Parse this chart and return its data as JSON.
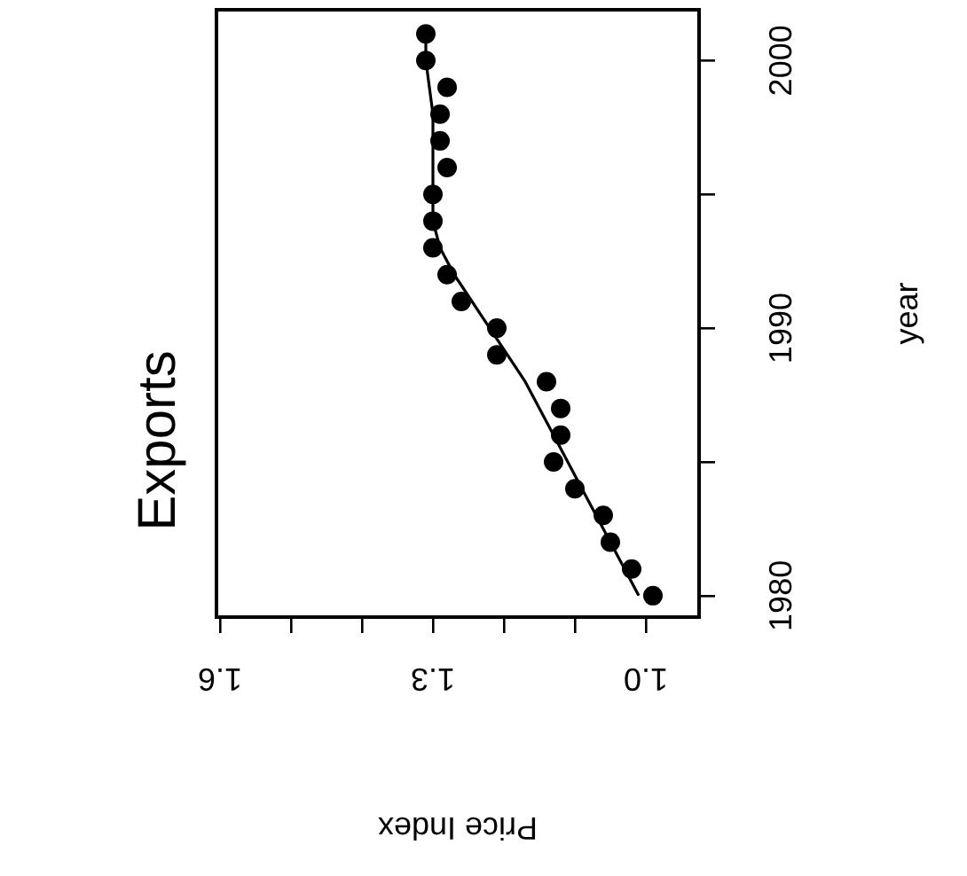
{
  "chart_data": {
    "type": "scatter",
    "title": "Exports",
    "xlabel": "Price Index",
    "ylabel": "year",
    "xlim": [
      1.605,
      0.925
    ],
    "ylim": [
      1979.2,
      2001.9
    ],
    "yticks": [
      1980,
      {
        "value": 1985,
        "label": null
      },
      1990,
      {
        "value": 1995,
        "label": null
      },
      2000
    ],
    "xticks": [
      {
        "value": 1,
        "label": "1.0"
      },
      {
        "value": 1.1,
        "label": null
      },
      {
        "value": 1.2,
        "label": null
      },
      1.3,
      {
        "value": 1.4,
        "label": null
      },
      {
        "value": 1.5,
        "label": null
      },
      1.6
    ],
    "grid": false,
    "legend": false,
    "marker": "circle",
    "series": [
      {
        "type": "scatter",
        "color": "#000000",
        "values": [
          1980,
          1981,
          1982,
          1983,
          1984,
          1985,
          1986,
          1987,
          1988,
          1989,
          1990,
          1991,
          1992,
          1993,
          1994,
          1995,
          1996,
          1997,
          1998,
          1999,
          2000,
          2001
        ],
        "x": [
          0.99,
          1.02,
          1.05,
          1.06,
          1.1,
          1.13,
          1.12,
          1.12,
          1.14,
          1.21,
          1.21,
          1.26,
          1.28,
          1.3,
          1.3,
          1.3,
          1.28,
          1.29,
          1.29,
          1.28,
          1.31,
          1.31
        ]
      },
      {
        "type": "line",
        "color": "#000000",
        "marker": "none",
        "values": [
          1980,
          1982,
          1984,
          1986,
          1988,
          1990,
          1992,
          1993,
          1994,
          1998,
          2000,
          2001
        ],
        "x": [
          1.01,
          1.05,
          1.09,
          1.13,
          1.17,
          1.22,
          1.27,
          1.29,
          1.3,
          1.3,
          1.31,
          1.31
        ]
      }
    ]
  }
}
